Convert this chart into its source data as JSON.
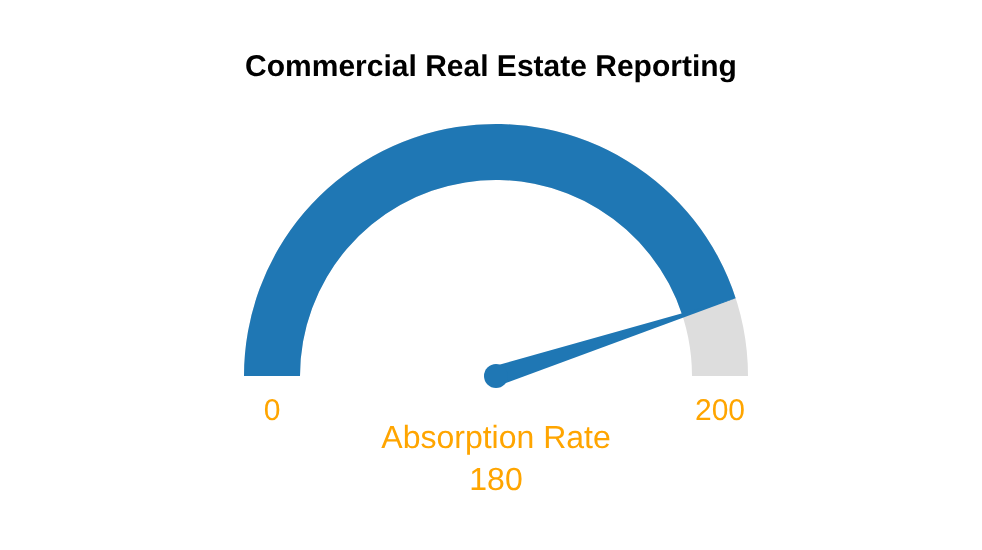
{
  "chart_data": {
    "type": "other",
    "title": "Commercial Real Estate Reporting",
    "categories": [
      "Absorption Rate"
    ],
    "values": [
      180
    ],
    "color": "#1f77b4",
    "data_labels": true,
    "annotations": [
      "0",
      "200"
    ]
  }
}
